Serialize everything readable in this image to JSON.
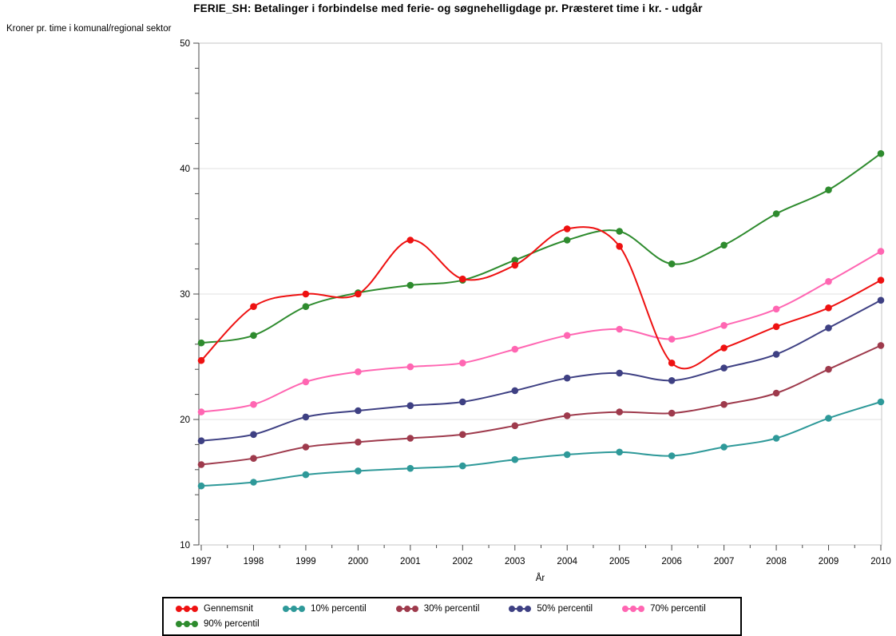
{
  "title": "FERIE_SH: Betalinger i forbindelse med ferie- og søgnehelligdage pr. Præsteret time i kr. - udgår",
  "chart_data": {
    "type": "line",
    "title": "FERIE_SH: Betalinger i forbindelse med ferie- og søgnehelligdage pr. Præsteret time i kr. - udgår",
    "xlabel": "År",
    "ylabel": "Kroner pr. time i komunal/regional sektor",
    "x": [
      1997,
      1998,
      1999,
      2000,
      2001,
      2002,
      2003,
      2004,
      2005,
      2006,
      2007,
      2008,
      2009,
      2010
    ],
    "ylim": [
      10,
      50
    ],
    "yticks": [
      10,
      20,
      30,
      40,
      50
    ],
    "grid": true,
    "legend_position": "bottom",
    "interpolation": "smooth-spline",
    "marker": "filled-circle",
    "series": [
      {
        "name": "Gennemsnit",
        "color": "#EE1111",
        "values": [
          24.7,
          29.0,
          30.0,
          30.0,
          34.3,
          31.2,
          32.3,
          35.2,
          33.8,
          24.5,
          25.7,
          27.4,
          28.9,
          31.1
        ]
      },
      {
        "name": "10% percentil",
        "color": "#2E9999",
        "values": [
          14.7,
          15.0,
          15.6,
          15.9,
          16.1,
          16.3,
          16.8,
          17.2,
          17.4,
          17.1,
          17.8,
          18.5,
          20.1,
          21.4
        ]
      },
      {
        "name": "30% percentil",
        "color": "#9E3A4C",
        "values": [
          16.4,
          16.9,
          17.8,
          18.2,
          18.5,
          18.8,
          19.5,
          20.3,
          20.6,
          20.5,
          21.2,
          22.1,
          24.0,
          25.9
        ]
      },
      {
        "name": "50% percentil",
        "color": "#3E4083",
        "values": [
          18.3,
          18.8,
          20.2,
          20.7,
          21.1,
          21.4,
          22.3,
          23.3,
          23.7,
          23.1,
          24.1,
          25.2,
          27.3,
          29.5
        ]
      },
      {
        "name": "70% percentil",
        "color": "#FF66B2",
        "values": [
          20.6,
          21.2,
          23.0,
          23.8,
          24.2,
          24.5,
          25.6,
          26.7,
          27.2,
          26.4,
          27.5,
          28.8,
          31.0,
          33.4
        ]
      },
      {
        "name": "90% percentil",
        "color": "#2E8B2E",
        "values": [
          26.1,
          26.7,
          29.0,
          30.1,
          30.7,
          31.1,
          32.7,
          34.3,
          35.0,
          32.4,
          33.9,
          36.4,
          38.3,
          41.2
        ]
      }
    ]
  },
  "colors": {
    "frame": "#C4C4C4",
    "gridline": "#E0E0E0",
    "axis": "#4A4A4A",
    "text": "#000000"
  }
}
